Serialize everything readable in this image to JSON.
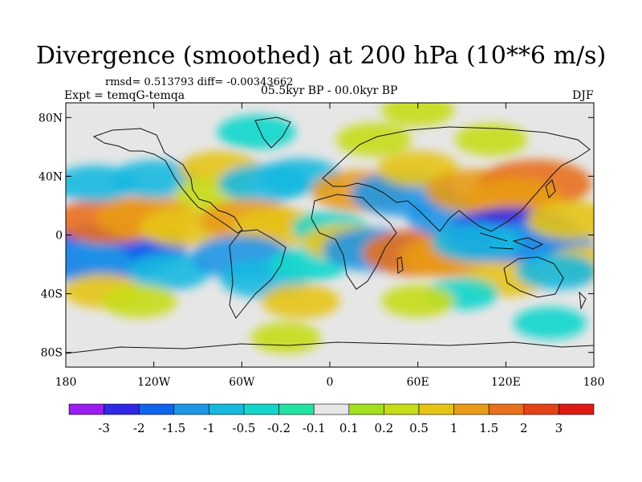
{
  "chart_data": {
    "type": "heatmap",
    "title": "Divergence (smoothed) at 200 hPa (10**6 m/s)",
    "stats_line": "rmsd= 0.513793 diff= -0.00343662",
    "left_label": "Expt = temqG-temqa",
    "center_label": "05.5kyr BP - 00.0kyr BP",
    "right_label": "DJF",
    "variable": "Divergence (smoothed)",
    "level_hPa": 200,
    "units": "10**6 m/s",
    "experiment": "temqG-temqa",
    "period": "05.5kyr BP - 00.0kyr BP",
    "season": "DJF",
    "rmsd": 0.513793,
    "diff": -0.00343662,
    "xlim": [
      -180,
      180
    ],
    "ylim": [
      -90,
      90
    ],
    "x_ticks": [
      {
        "value": -180,
        "label": "180"
      },
      {
        "value": -120,
        "label": "120W"
      },
      {
        "value": -60,
        "label": "60W"
      },
      {
        "value": 0,
        "label": "0"
      },
      {
        "value": 60,
        "label": "60E"
      },
      {
        "value": 120,
        "label": "120E"
      },
      {
        "value": 180,
        "label": "180"
      }
    ],
    "y_ticks": [
      {
        "value": 80,
        "label": "80N"
      },
      {
        "value": 40,
        "label": "40N"
      },
      {
        "value": 0,
        "label": "0"
      },
      {
        "value": -40,
        "label": "40S"
      },
      {
        "value": -80,
        "label": "80S"
      }
    ],
    "colorbar": {
      "boundaries": [
        {
          "value": -3,
          "label": "-3"
        },
        {
          "value": -2,
          "label": "-2"
        },
        {
          "value": -1.5,
          "label": "-1.5"
        },
        {
          "value": -1,
          "label": "-1"
        },
        {
          "value": -0.5,
          "label": "-0.5"
        },
        {
          "value": -0.2,
          "label": "-0.2"
        },
        {
          "value": -0.1,
          "label": "-0.1"
        },
        {
          "value": 0.1,
          "label": "0.1"
        },
        {
          "value": 0.2,
          "label": "0.2"
        },
        {
          "value": 0.5,
          "label": "0.5"
        },
        {
          "value": 1,
          "label": "1"
        },
        {
          "value": 1.5,
          "label": "1.5"
        },
        {
          "value": 2,
          "label": "2"
        },
        {
          "value": 3,
          "label": "3"
        }
      ],
      "colors": [
        "#9b1cf0",
        "#2f28e6",
        "#0f64ec",
        "#1e96e6",
        "#16b9e0",
        "#12d6cc",
        "#24e2a2",
        "#e6e6e6",
        "#a2e01c",
        "#c6dc14",
        "#e6c414",
        "#e89b14",
        "#e8701c",
        "#e44214",
        "#e01a12"
      ]
    },
    "regions": [
      {
        "lon": -155,
        "lat": -12,
        "value": -2.4
      },
      {
        "lon": -135,
        "lat": -10,
        "value": -1.6
      },
      {
        "lon": -168,
        "lat": -18,
        "value": -1.1
      },
      {
        "lon": -110,
        "lat": -25,
        "value": -0.7
      },
      {
        "lon": -150,
        "lat": 10,
        "value": 1.6
      },
      {
        "lon": -125,
        "lat": 12,
        "value": 1.3
      },
      {
        "lon": -100,
        "lat": 5,
        "value": 0.8
      },
      {
        "lon": -160,
        "lat": 35,
        "value": -0.7
      },
      {
        "lon": -120,
        "lat": 38,
        "value": -0.8
      },
      {
        "lon": -155,
        "lat": -38,
        "value": 0.5
      },
      {
        "lon": -130,
        "lat": -45,
        "value": 0.4
      },
      {
        "lon": -75,
        "lat": 45,
        "value": 0.6
      },
      {
        "lon": -80,
        "lat": 28,
        "value": 0.4
      },
      {
        "lon": -45,
        "lat": 35,
        "value": -0.9
      },
      {
        "lon": -20,
        "lat": 40,
        "value": -0.6
      },
      {
        "lon": -55,
        "lat": 10,
        "value": 1.2
      },
      {
        "lon": -35,
        "lat": 5,
        "value": 0.9
      },
      {
        "lon": -60,
        "lat": -15,
        "value": -1.3
      },
      {
        "lon": -45,
        "lat": -30,
        "value": -0.8
      },
      {
        "lon": -15,
        "lat": -20,
        "value": -0.5
      },
      {
        "lon": -20,
        "lat": -45,
        "value": 0.5
      },
      {
        "lon": 0,
        "lat": 5,
        "value": -0.4
      },
      {
        "lon": 20,
        "lat": 30,
        "value": 1.1
      },
      {
        "lon": 10,
        "lat": -5,
        "value": 0.7
      },
      {
        "lon": 30,
        "lat": -10,
        "value": -1.3
      },
      {
        "lon": 60,
        "lat": -12,
        "value": 1.6
      },
      {
        "lon": 80,
        "lat": -15,
        "value": 1.1
      },
      {
        "lon": 50,
        "lat": 28,
        "value": -1.4
      },
      {
        "lon": 60,
        "lat": 45,
        "value": 0.6
      },
      {
        "lon": 85,
        "lat": 12,
        "value": -1.1
      },
      {
        "lon": 100,
        "lat": 30,
        "value": 1.3
      },
      {
        "lon": 140,
        "lat": 35,
        "value": 1.7
      },
      {
        "lon": 125,
        "lat": 25,
        "value": 1.1
      },
      {
        "lon": 125,
        "lat": 0,
        "value": -2.4
      },
      {
        "lon": 145,
        "lat": -5,
        "value": -1.3
      },
      {
        "lon": 100,
        "lat": -5,
        "value": -0.9
      },
      {
        "lon": 165,
        "lat": 10,
        "value": 0.9
      },
      {
        "lon": 175,
        "lat": -20,
        "value": 0.7
      },
      {
        "lon": 120,
        "lat": -30,
        "value": 0.6
      },
      {
        "lon": 155,
        "lat": -25,
        "value": -0.6
      },
      {
        "lon": 90,
        "lat": -40,
        "value": -0.3
      },
      {
        "lon": 60,
        "lat": -45,
        "value": 0.3
      },
      {
        "lon": -50,
        "lat": 70,
        "value": -0.5
      },
      {
        "lon": 30,
        "lat": 65,
        "value": 0.4
      },
      {
        "lon": 110,
        "lat": 65,
        "value": 0.3
      },
      {
        "lon": 60,
        "lat": 85,
        "value": 0.3
      },
      {
        "lon": 150,
        "lat": -60,
        "value": -0.3
      },
      {
        "lon": -30,
        "lat": -70,
        "value": 0.2
      }
    ]
  }
}
